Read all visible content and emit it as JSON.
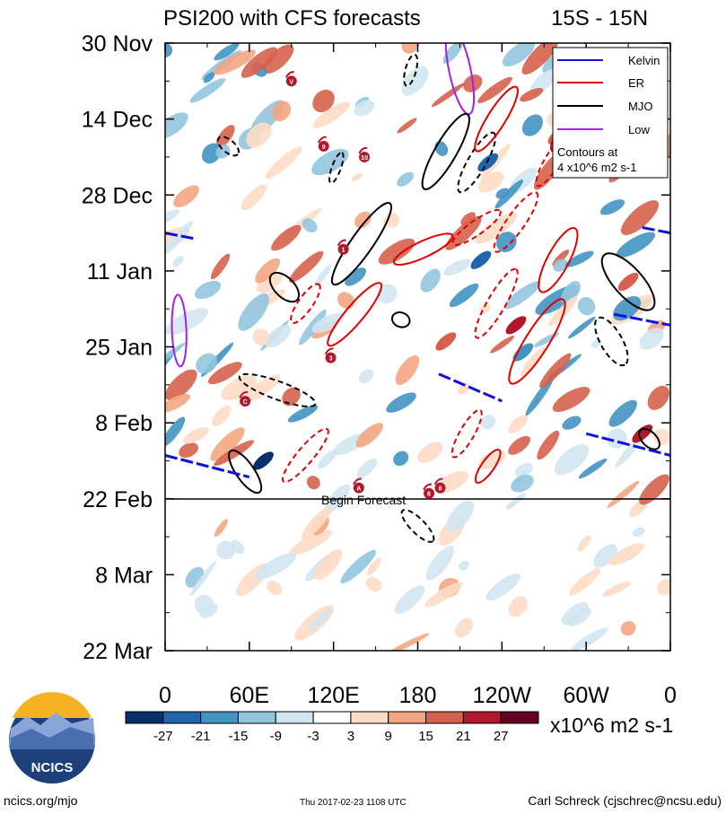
{
  "chart_data": {
    "type": "heatmap",
    "title": "PSI200 with CFS forecasts",
    "region": "15S - 15N",
    "x_ticks": [
      "0",
      "60E",
      "120E",
      "180",
      "120W",
      "60W",
      "0"
    ],
    "x_tick_values": [
      0,
      60,
      120,
      180,
      240,
      300,
      360
    ],
    "xlim": [
      0,
      360
    ],
    "y_ticks": [
      "30 Nov",
      "14 Dec",
      "28 Dec",
      "11 Jan",
      "25 Jan",
      "8 Feb",
      "22 Feb",
      "8 Mar",
      "22 Mar"
    ],
    "y_tick_values": [
      0,
      14,
      28,
      42,
      56,
      70,
      84,
      98,
      112
    ],
    "ylim": [
      0,
      112
    ],
    "forecast_line": {
      "label": "Begin Forecast",
      "day": 84
    },
    "colorbar": {
      "colors": [
        "#08306b",
        "#2166ac",
        "#4393c3",
        "#92c5de",
        "#d1e5f0",
        "#ffffff",
        "#fddbc7",
        "#f4a582",
        "#d6604d",
        "#b2182b",
        "#67001f"
      ],
      "labels": [
        "-27",
        "-21",
        "-15",
        "-9",
        "-3",
        "3",
        "9",
        "15",
        "21",
        "27"
      ],
      "units": "x10^6 m2 s-1"
    },
    "legend": {
      "position": "top-right",
      "entries": [
        {
          "name": "Kelvin",
          "color": "#1010e0"
        },
        {
          "name": "ER",
          "color": "#e00000"
        },
        {
          "name": "MJO",
          "color": "#000000"
        },
        {
          "name": "Low",
          "color": "#a020f0"
        }
      ],
      "note_line1": "Contours at",
      "note_line2": "4 x10^6 m2 s-1"
    },
    "storms": [
      {
        "lon": 90,
        "day": 7,
        "label": "V"
      },
      {
        "lon": 113,
        "day": 19,
        "label": "9"
      },
      {
        "lon": 142,
        "day": 21,
        "label": "10"
      },
      {
        "lon": 127,
        "day": 38,
        "label": "1"
      },
      {
        "lon": 118,
        "day": 58,
        "label": "3"
      },
      {
        "lon": 57,
        "day": 66,
        "label": "C"
      },
      {
        "lon": 138,
        "day": 82,
        "label": "A"
      },
      {
        "lon": 188,
        "day": 83,
        "label": "8"
      },
      {
        "lon": 196,
        "day": 82,
        "label": "8"
      }
    ]
  },
  "footer": {
    "logo_text": "NCICS",
    "url": "ncics.org/mjo",
    "timestamp": "Thu 2017-02-23 1108 UTC",
    "author": "Carl Schreck (cjschrec@ncsu.edu)"
  }
}
